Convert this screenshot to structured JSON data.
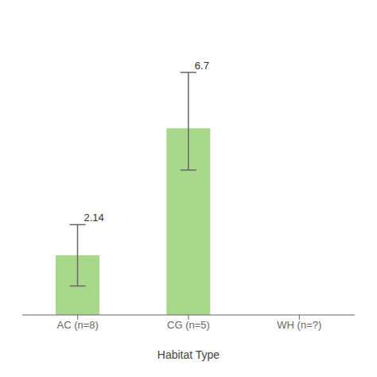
{
  "chart_data": {
    "type": "bar",
    "categories": [
      "AC (n=8)",
      "CG (n=5)",
      "WH (n=?)"
    ],
    "values": [
      2.14,
      6.7,
      null
    ],
    "errors_upper": [
      1.1,
      2.0,
      null
    ],
    "errors_lower": [
      1.1,
      1.5,
      null
    ],
    "color": "#A8D88A",
    "xlabel": "Habitat Type",
    "ylim": [
      0,
      10.5
    ],
    "grid": false,
    "tick_labels": "x",
    "data_labels": true
  }
}
